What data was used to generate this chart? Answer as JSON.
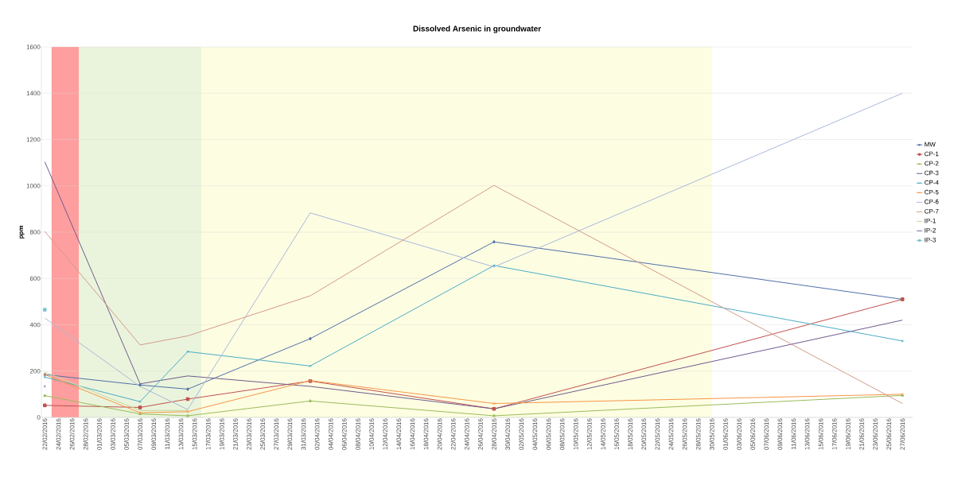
{
  "chart_data": {
    "type": "line",
    "title": "Dissolved Arsenic in groundwater",
    "ylabel": "ppm",
    "x": [
      "2016-02-22",
      "2016-03-07",
      "2016-03-14",
      "2016-04-01",
      "2016-04-28",
      "2016-06-27"
    ],
    "series": [
      {
        "name": "MW",
        "color": "#4f6fa8",
        "marker": "diamond",
        "values": [
          185,
          140,
          122,
          340,
          758,
          510
        ]
      },
      {
        "name": "CP-1",
        "color": "#c0504d",
        "marker": "square",
        "values": [
          52,
          43,
          79,
          157,
          37,
          510
        ]
      },
      {
        "name": "CP-2",
        "color": "#9bbb59",
        "marker": "triangle",
        "values": [
          94,
          15,
          7,
          71,
          7,
          95
        ]
      },
      {
        "name": "CP-3",
        "color": "#6f5a8e",
        "marker": "none",
        "values": [
          1104,
          145,
          179,
          134,
          37,
          420
        ]
      },
      {
        "name": "CP-4",
        "color": "#4bacc6",
        "marker": "cross",
        "values": [
          174,
          68,
          284,
          222,
          656,
          330
        ]
      },
      {
        "name": "CP-5",
        "color": "#f79646",
        "marker": "cross",
        "values": [
          185,
          20,
          25,
          159,
          60,
          100
        ]
      },
      {
        "name": "CP-6",
        "color": "#a9b8da",
        "marker": "none",
        "values": [
          429,
          134,
          34,
          883,
          650,
          1400
        ]
      },
      {
        "name": "CP-7",
        "color": "#d49a8a",
        "marker": "none",
        "values": [
          803,
          313,
          352,
          525,
          1002,
          60
        ]
      },
      {
        "name": "IP-1",
        "color": "#c6d9a0",
        "marker": "none",
        "values": [
          196,
          30,
          30,
          null,
          null,
          null
        ]
      },
      {
        "name": "IP-2",
        "color": "#8a7fa8",
        "marker": "cross",
        "values": [
          134,
          null,
          null,
          null,
          null,
          null
        ]
      },
      {
        "name": "IP-3",
        "color": "#7fc3d6",
        "marker": "square",
        "values": [
          465,
          null,
          null,
          null,
          null,
          null
        ]
      }
    ],
    "xlim": [
      "2016-02-21T12:00",
      "2016-06-28T12:00"
    ],
    "ylim": [
      0,
      1600
    ],
    "yticks": [
      0,
      200,
      400,
      600,
      800,
      1000,
      1200,
      1400,
      1600
    ],
    "xticks": [
      {
        "value": "2016-02-22",
        "label": "22/02/2016"
      },
      {
        "value": "2016-02-24",
        "label": "24/02/2016"
      },
      {
        "value": "2016-02-26",
        "label": "26/02/2016"
      },
      {
        "value": "2016-02-28",
        "label": "28/02/2016"
      },
      {
        "value": "2016-03-01",
        "label": "01/03/2016"
      },
      {
        "value": "2016-03-03",
        "label": "03/03/2016"
      },
      {
        "value": "2016-03-05",
        "label": "05/03/2016"
      },
      {
        "value": "2016-03-07",
        "label": "07/03/2016"
      },
      {
        "value": "2016-03-09",
        "label": "09/03/2016"
      },
      {
        "value": "2016-03-11",
        "label": "11/03/2016"
      },
      {
        "value": "2016-03-13",
        "label": "13/03/2016"
      },
      {
        "value": "2016-03-15",
        "label": "15/03/2016"
      },
      {
        "value": "2016-03-17",
        "label": "17/03/2016"
      },
      {
        "value": "2016-03-19",
        "label": "19/03/2016"
      },
      {
        "value": "2016-03-21",
        "label": "21/03/2016"
      },
      {
        "value": "2016-03-23",
        "label": "23/03/2016"
      },
      {
        "value": "2016-03-25",
        "label": "25/03/2016"
      },
      {
        "value": "2016-03-27",
        "label": "27/03/2016"
      },
      {
        "value": "2016-03-29",
        "label": "29/03/2016"
      },
      {
        "value": "2016-03-31",
        "label": "31/03/2016"
      },
      {
        "value": "2016-04-02",
        "label": "02/04/2016"
      },
      {
        "value": "2016-04-04",
        "label": "04/04/2016"
      },
      {
        "value": "2016-04-06",
        "label": "06/04/2016"
      },
      {
        "value": "2016-04-08",
        "label": "08/04/2016"
      },
      {
        "value": "2016-04-10",
        "label": "10/04/2016"
      },
      {
        "value": "2016-04-12",
        "label": "12/04/2016"
      },
      {
        "value": "2016-04-14",
        "label": "14/04/2016"
      },
      {
        "value": "2016-04-16",
        "label": "16/04/2016"
      },
      {
        "value": "2016-04-18",
        "label": "18/04/2016"
      },
      {
        "value": "2016-04-20",
        "label": "20/04/2016"
      },
      {
        "value": "2016-04-22",
        "label": "22/04/2016"
      },
      {
        "value": "2016-04-24",
        "label": "24/04/2016"
      },
      {
        "value": "2016-04-26",
        "label": "26/04/2016"
      },
      {
        "value": "2016-04-28",
        "label": "28/04/2016"
      },
      {
        "value": "2016-04-30",
        "label": "30/04/2016"
      },
      {
        "value": "2016-05-02",
        "label": "02/05/2016"
      },
      {
        "value": "2016-05-04",
        "label": "04/05/2016"
      },
      {
        "value": "2016-05-06",
        "label": "06/05/2016"
      },
      {
        "value": "2016-05-08",
        "label": "08/05/2016"
      },
      {
        "value": "2016-05-10",
        "label": "10/05/2016"
      },
      {
        "value": "2016-05-12",
        "label": "12/05/2016"
      },
      {
        "value": "2016-05-14",
        "label": "14/05/2016"
      },
      {
        "value": "2016-05-16",
        "label": "16/05/2016"
      },
      {
        "value": "2016-05-18",
        "label": "18/05/2016"
      },
      {
        "value": "2016-05-20",
        "label": "20/05/2016"
      },
      {
        "value": "2016-05-22",
        "label": "22/05/2016"
      },
      {
        "value": "2016-05-24",
        "label": "24/05/2016"
      },
      {
        "value": "2016-05-26",
        "label": "26/05/2016"
      },
      {
        "value": "2016-05-28",
        "label": "28/05/2016"
      },
      {
        "value": "2016-05-30",
        "label": "30/05/2016"
      },
      {
        "value": "2016-06-01",
        "label": "01/06/2016"
      },
      {
        "value": "2016-06-03",
        "label": "03/06/2016"
      },
      {
        "value": "2016-06-05",
        "label": "05/06/2016"
      },
      {
        "value": "2016-06-07",
        "label": "07/06/2016"
      },
      {
        "value": "2016-06-09",
        "label": "09/06/2016"
      },
      {
        "value": "2016-06-11",
        "label": "11/06/2016"
      },
      {
        "value": "2016-06-13",
        "label": "13/06/2016"
      },
      {
        "value": "2016-06-15",
        "label": "15/06/2016"
      },
      {
        "value": "2016-06-17",
        "label": "17/06/2016"
      },
      {
        "value": "2016-06-19",
        "label": "19/06/2016"
      },
      {
        "value": "2016-06-21",
        "label": "21/06/2016"
      },
      {
        "value": "2016-06-23",
        "label": "23/06/2016"
      },
      {
        "value": "2016-06-25",
        "label": "25/06/2016"
      },
      {
        "value": "2016-06-27",
        "label": "27/06/2016"
      }
    ],
    "bands": [
      {
        "axis": "x",
        "from": "2016-02-23",
        "to": "2016-02-27",
        "color": "#ff9e9e"
      },
      {
        "axis": "x",
        "from": "2016-02-27",
        "to": "2016-03-16",
        "color": "#eaf4dc"
      },
      {
        "axis": "x",
        "from": "2016-03-16",
        "to": "2016-05-30",
        "color": "#fdfde2"
      }
    ],
    "grid": "y",
    "legend": "right"
  }
}
